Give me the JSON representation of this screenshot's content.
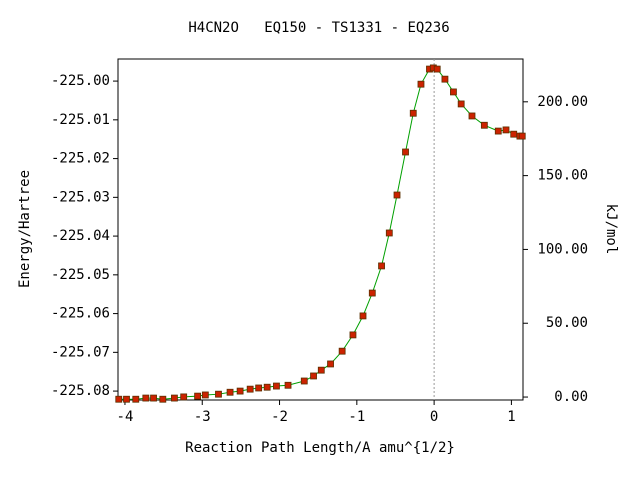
{
  "chart_data": {
    "type": "line",
    "title": "H4CN2O   EQ150 - TS1331 - EQ236",
    "xlabel": "Reaction Path Length/A amu^{1/2}",
    "ylabel": "Energy/Hartree",
    "y2label": "kJ/mol",
    "xlim": [
      -4.09,
      1.15
    ],
    "ylim": [
      -225.0823,
      -224.9943
    ],
    "y2lim": [
      -2.0,
      229.0
    ],
    "xticks": [
      -4,
      -3,
      -2,
      -1,
      0,
      1
    ],
    "yticks": [
      {
        "value": -225.0,
        "label": "-225.00"
      },
      -225.01,
      -225.02,
      -225.03,
      -225.04,
      -225.05,
      -225.06,
      -225.07,
      -225.08
    ],
    "y2ticks": [
      {
        "value": 0,
        "label": "0.00"
      },
      {
        "value": 50,
        "label": "50.00"
      },
      {
        "value": 100,
        "label": "100.00"
      },
      {
        "value": 150,
        "label": "150.00"
      },
      {
        "value": 200,
        "label": "200.00"
      }
    ],
    "vline_x": 0,
    "line_color": "#00a000",
    "marker_color": "#cc2200",
    "series": [
      {
        "x": [
          -4.08,
          -3.98,
          -3.86,
          -3.73,
          -3.63,
          -3.51,
          -3.36,
          -3.24,
          -3.06,
          -2.96,
          -2.79,
          -2.64,
          -2.51,
          -2.38,
          -2.27,
          -2.16,
          -2.04,
          -1.89,
          -1.68,
          -1.56,
          -1.46,
          -1.34,
          -1.19,
          -1.05,
          -0.92,
          -0.8,
          -0.68,
          -0.58,
          -0.48,
          -0.37,
          -0.27,
          -0.17,
          -0.06,
          -0.01,
          0.04,
          0.14,
          0.25,
          0.35,
          0.49,
          0.65,
          0.83,
          0.93,
          1.03,
          1.11,
          1.14
        ],
        "values": [
          -225.0821,
          -225.0821,
          -225.0821,
          -225.0818,
          -225.0818,
          -225.0821,
          -225.0818,
          -225.0815,
          -225.0813,
          -225.081,
          -225.0808,
          -225.0803,
          -225.08,
          -225.0795,
          -225.0792,
          -225.079,
          -225.0787,
          -225.0785,
          -225.0774,
          -225.0761,
          -225.0746,
          -225.073,
          -225.0697,
          -225.0655,
          -225.0606,
          -225.0547,
          -225.0477,
          -225.0392,
          -225.0294,
          -225.0183,
          -225.0083,
          -225.0008,
          -224.9969,
          -224.9966,
          -224.9969,
          -224.9995,
          -225.0028,
          -225.0059,
          -225.009,
          -225.0114,
          -225.0129,
          -225.0126,
          -225.0137,
          -225.0142,
          -225.0142
        ]
      }
    ]
  }
}
